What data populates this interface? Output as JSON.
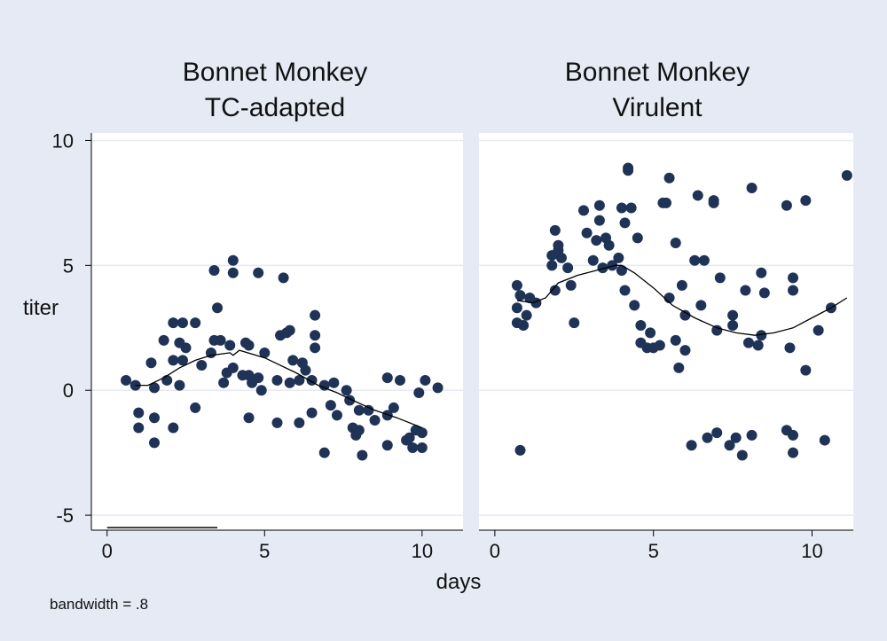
{
  "chart_data": {
    "type": "scatter",
    "xlabel": "days",
    "ylabel": "titer",
    "note": "bandwidth = .8",
    "xlim": [
      -0.5,
      11.3
    ],
    "ylim": [
      -5.6,
      10.3
    ],
    "x_ticks": [
      0,
      5,
      10
    ],
    "y_ticks": [
      -5,
      0,
      5,
      10
    ],
    "grid": true,
    "colors": {
      "background": "#e6eaf5",
      "plot_area": "#ffffff",
      "marker": "#1f3357",
      "smooth_line": "#000000",
      "grid": "#e6eaf5"
    },
    "panels": [
      {
        "title": [
          "Bonnet Monkey",
          "TC-adapted"
        ],
        "points": [
          [
            0.6,
            0.4
          ],
          [
            0.9,
            0.2
          ],
          [
            1.0,
            -0.9
          ],
          [
            1.0,
            -1.5
          ],
          [
            1.4,
            1.1
          ],
          [
            1.5,
            0.1
          ],
          [
            1.5,
            -1.1
          ],
          [
            1.5,
            -2.1
          ],
          [
            1.8,
            2.0
          ],
          [
            1.9,
            0.4
          ],
          [
            2.1,
            2.7
          ],
          [
            2.1,
            1.2
          ],
          [
            2.1,
            -1.5
          ],
          [
            2.3,
            1.9
          ],
          [
            2.3,
            0.2
          ],
          [
            2.4,
            2.7
          ],
          [
            2.4,
            1.2
          ],
          [
            2.5,
            1.7
          ],
          [
            2.8,
            2.7
          ],
          [
            2.8,
            -0.7
          ],
          [
            3.0,
            1.0
          ],
          [
            3.3,
            1.5
          ],
          [
            3.4,
            4.8
          ],
          [
            3.4,
            2.0
          ],
          [
            3.5,
            3.3
          ],
          [
            3.6,
            2.0
          ],
          [
            3.7,
            0.3
          ],
          [
            3.8,
            0.7
          ],
          [
            3.9,
            1.8
          ],
          [
            4.0,
            5.2
          ],
          [
            4.0,
            4.7
          ],
          [
            4.0,
            0.9
          ],
          [
            4.3,
            0.6
          ],
          [
            4.4,
            1.9
          ],
          [
            4.5,
            1.8
          ],
          [
            4.5,
            0.6
          ],
          [
            4.5,
            -1.1
          ],
          [
            4.6,
            0.3
          ],
          [
            4.8,
            0.5
          ],
          [
            4.8,
            4.7
          ],
          [
            4.9,
            0.0
          ],
          [
            5.0,
            1.5
          ],
          [
            5.4,
            0.4
          ],
          [
            5.4,
            -1.3
          ],
          [
            5.5,
            2.2
          ],
          [
            5.6,
            4.5
          ],
          [
            5.7,
            2.3
          ],
          [
            5.8,
            2.4
          ],
          [
            5.8,
            0.3
          ],
          [
            5.9,
            1.2
          ],
          [
            6.1,
            -1.3
          ],
          [
            6.1,
            0.4
          ],
          [
            6.2,
            1.1
          ],
          [
            6.3,
            0.8
          ],
          [
            6.5,
            -0.9
          ],
          [
            6.5,
            0.4
          ],
          [
            6.6,
            3.0
          ],
          [
            6.6,
            2.2
          ],
          [
            6.6,
            1.7
          ],
          [
            6.9,
            -2.5
          ],
          [
            6.9,
            0.2
          ],
          [
            7.1,
            -0.6
          ],
          [
            7.2,
            0.3
          ],
          [
            7.3,
            -1.0
          ],
          [
            7.6,
            0.0
          ],
          [
            7.7,
            -0.4
          ],
          [
            7.8,
            -1.5
          ],
          [
            7.9,
            -1.8
          ],
          [
            8.0,
            -0.8
          ],
          [
            8.0,
            -1.6
          ],
          [
            8.1,
            -2.6
          ],
          [
            8.3,
            -0.8
          ],
          [
            8.5,
            -1.2
          ],
          [
            8.9,
            0.5
          ],
          [
            8.9,
            -1.0
          ],
          [
            8.9,
            -2.2
          ],
          [
            9.1,
            -0.7
          ],
          [
            9.3,
            0.4
          ],
          [
            9.5,
            -2.0
          ],
          [
            9.6,
            -1.9
          ],
          [
            9.7,
            -2.3
          ],
          [
            9.8,
            -1.6
          ],
          [
            9.9,
            -0.1
          ],
          [
            10.0,
            -1.7
          ],
          [
            10.0,
            -2.3
          ],
          [
            10.1,
            0.4
          ],
          [
            10.5,
            0.1
          ]
        ],
        "smooth": [
          [
            0.9,
            0.2
          ],
          [
            1.3,
            0.2
          ],
          [
            1.8,
            0.5
          ],
          [
            2.3,
            0.9
          ],
          [
            2.8,
            1.2
          ],
          [
            3.3,
            1.4
          ],
          [
            3.9,
            1.5
          ],
          [
            4.0,
            1.4
          ],
          [
            4.2,
            1.6
          ],
          [
            5.0,
            1.3
          ],
          [
            6.0,
            0.7
          ],
          [
            6.7,
            0.2
          ],
          [
            7.3,
            -0.1
          ],
          [
            7.8,
            -0.4
          ],
          [
            8.5,
            -0.8
          ],
          [
            9.2,
            -1.1
          ],
          [
            10.0,
            -1.5
          ]
        ],
        "baseline": [
          [
            0.0,
            -5.5
          ],
          [
            3.5,
            -5.5
          ]
        ]
      },
      {
        "title": [
          "Bonnet Monkey",
          "Virulent"
        ],
        "points": [
          [
            0.7,
            4.2
          ],
          [
            0.7,
            3.3
          ],
          [
            0.7,
            2.7
          ],
          [
            0.8,
            3.8
          ],
          [
            0.8,
            -2.4
          ],
          [
            0.9,
            2.6
          ],
          [
            1.0,
            3.0
          ],
          [
            1.1,
            3.7
          ],
          [
            1.3,
            3.5
          ],
          [
            1.8,
            5.4
          ],
          [
            1.8,
            5.0
          ],
          [
            1.9,
            6.4
          ],
          [
            1.9,
            4.0
          ],
          [
            2.0,
            5.8
          ],
          [
            2.0,
            5.6
          ],
          [
            2.1,
            5.3
          ],
          [
            2.3,
            4.9
          ],
          [
            2.4,
            4.2
          ],
          [
            2.5,
            2.7
          ],
          [
            2.8,
            7.2
          ],
          [
            2.9,
            6.3
          ],
          [
            3.1,
            5.2
          ],
          [
            3.2,
            6.0
          ],
          [
            3.3,
            7.4
          ],
          [
            3.3,
            6.8
          ],
          [
            3.4,
            4.9
          ],
          [
            3.5,
            6.1
          ],
          [
            3.6,
            5.8
          ],
          [
            3.7,
            5.0
          ],
          [
            3.9,
            5.3
          ],
          [
            4.0,
            7.3
          ],
          [
            4.0,
            4.8
          ],
          [
            4.1,
            6.7
          ],
          [
            4.1,
            4.0
          ],
          [
            4.2,
            8.9
          ],
          [
            4.2,
            8.8
          ],
          [
            4.3,
            7.3
          ],
          [
            4.4,
            3.4
          ],
          [
            4.5,
            6.1
          ],
          [
            4.6,
            2.6
          ],
          [
            4.6,
            1.9
          ],
          [
            4.8,
            1.7
          ],
          [
            4.9,
            2.3
          ],
          [
            5.0,
            1.7
          ],
          [
            5.2,
            1.8
          ],
          [
            5.3,
            7.5
          ],
          [
            5.4,
            7.5
          ],
          [
            5.5,
            8.5
          ],
          [
            5.5,
            3.7
          ],
          [
            5.7,
            5.9
          ],
          [
            5.7,
            2.0
          ],
          [
            5.8,
            0.9
          ],
          [
            5.9,
            4.2
          ],
          [
            6.0,
            1.6
          ],
          [
            6.0,
            3.0
          ],
          [
            6.2,
            -2.2
          ],
          [
            6.3,
            5.2
          ],
          [
            6.4,
            7.8
          ],
          [
            6.5,
            3.4
          ],
          [
            6.6,
            5.2
          ],
          [
            6.7,
            -1.9
          ],
          [
            6.9,
            7.6
          ],
          [
            6.9,
            7.5
          ],
          [
            7.0,
            2.4
          ],
          [
            7.0,
            -1.7
          ],
          [
            7.1,
            4.5
          ],
          [
            7.4,
            -2.2
          ],
          [
            7.5,
            3.0
          ],
          [
            7.5,
            2.6
          ],
          [
            7.6,
            -1.9
          ],
          [
            7.8,
            -2.6
          ],
          [
            7.9,
            4.0
          ],
          [
            8.0,
            1.9
          ],
          [
            8.1,
            8.1
          ],
          [
            8.1,
            -1.8
          ],
          [
            8.3,
            1.8
          ],
          [
            8.4,
            4.7
          ],
          [
            8.4,
            2.2
          ],
          [
            8.5,
            3.9
          ],
          [
            9.2,
            7.4
          ],
          [
            9.2,
            -1.6
          ],
          [
            9.3,
            1.7
          ],
          [
            9.4,
            4.0
          ],
          [
            9.4,
            4.5
          ],
          [
            9.4,
            -1.8
          ],
          [
            9.4,
            -2.5
          ],
          [
            9.8,
            7.6
          ],
          [
            9.8,
            0.8
          ],
          [
            10.2,
            2.4
          ],
          [
            10.4,
            -2.0
          ],
          [
            10.6,
            3.3
          ],
          [
            11.1,
            8.6
          ]
        ],
        "smooth": [
          [
            0.7,
            3.6
          ],
          [
            1.2,
            3.5
          ],
          [
            1.6,
            3.7
          ],
          [
            2.0,
            4.3
          ],
          [
            2.6,
            4.6
          ],
          [
            3.2,
            4.8
          ],
          [
            3.8,
            5.0
          ],
          [
            4.0,
            5.0
          ],
          [
            4.4,
            4.7
          ],
          [
            5.0,
            4.1
          ],
          [
            5.6,
            3.4
          ],
          [
            6.3,
            2.9
          ],
          [
            7.0,
            2.5
          ],
          [
            7.6,
            2.3
          ],
          [
            8.2,
            2.2
          ],
          [
            8.8,
            2.3
          ],
          [
            9.4,
            2.5
          ],
          [
            10.0,
            2.9
          ],
          [
            10.6,
            3.3
          ],
          [
            11.1,
            3.7
          ]
        ]
      }
    ]
  }
}
